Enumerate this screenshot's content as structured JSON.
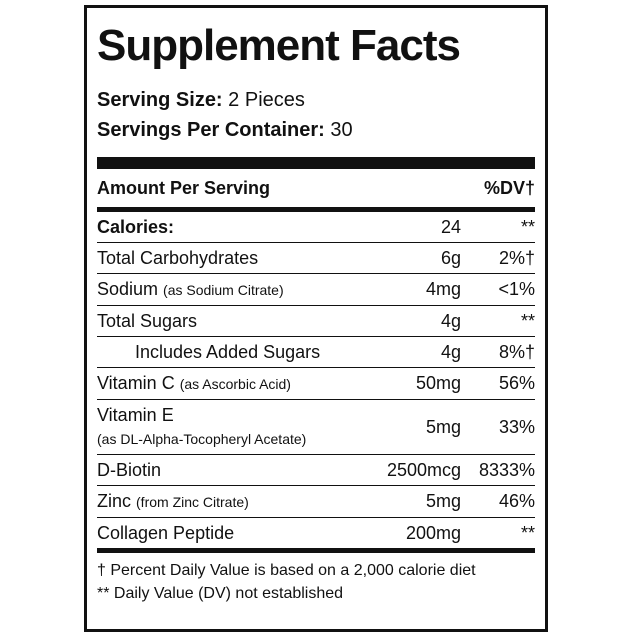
{
  "title": "Supplement Facts",
  "serving_size": {
    "label": "Serving Size:",
    "value": "2 Pieces"
  },
  "servings_per_container": {
    "label": "Servings Per Container:",
    "value": "30"
  },
  "table": {
    "header": [
      "Amount Per Serving",
      "%DV†"
    ],
    "calories": {
      "name": "Calories:",
      "amount": "24",
      "dv": "**"
    },
    "rows": [
      {
        "name": "Total Carbohydrates",
        "amount": "6g",
        "dv": "2%†"
      },
      {
        "name": "Sodium",
        "note": "(as Sodium Citrate)",
        "amount": "4mg",
        "dv": "<1%"
      },
      {
        "name": "Total Sugars",
        "amount": "4g",
        "dv": "**",
        "sub_rows": [
          {
            "name": "Includes Added Sugars",
            "amount": "4g",
            "dv": "8%†"
          }
        ]
      },
      {
        "name": "Vitamin C",
        "note": "(as Ascorbic Acid)",
        "amount": "50mg",
        "dv": "56%"
      },
      {
        "name": "Vitamin E",
        "note": "(as DL-Alpha-Tocopheryl Acetate)",
        "amount": "5mg",
        "dv": "33%"
      },
      {
        "name": "D-Biotin",
        "amount": "2500mcg",
        "dv": "8333%"
      },
      {
        "name": "Zinc",
        "note": "(from Zinc Citrate)",
        "amount": "5mg",
        "dv": "46%"
      },
      {
        "name": "Collagen Peptide",
        "amount": "200mg",
        "dv": "**"
      }
    ]
  },
  "footnotes": [
    "† Percent Daily Value is based on a 2,000 calorie diet",
    "** Daily Value (DV) not established"
  ]
}
